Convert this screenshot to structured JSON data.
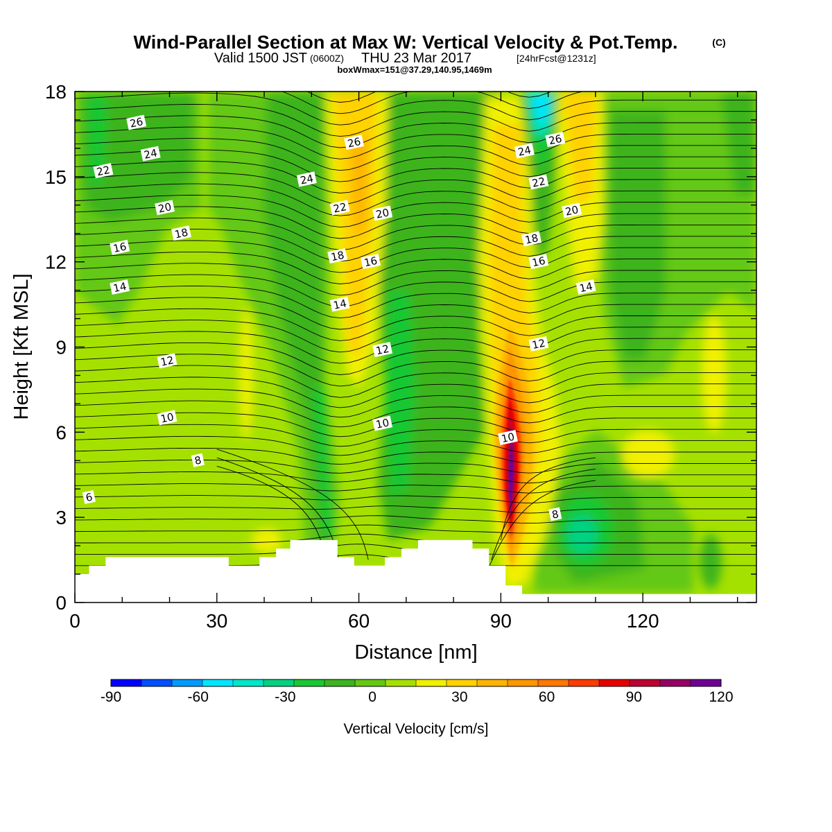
{
  "title": {
    "main": "Wind-Parallel Section at Max W: Vertical Velocity & Pot.Temp.",
    "main_mark": "(C)",
    "valid_a": "Valid 1500 JST",
    "valid_z": "(0600Z)",
    "valid_b": "THU 23 Mar 2017",
    "valid_fcst": "[24hrFcst@1231z]",
    "box": "boxWmax=151@37.29,140.95,1469m"
  },
  "chart_data": {
    "type": "heatmap",
    "xlabel": "Distance [nm]",
    "ylabel": "Height [Kft MSL]",
    "xlim": [
      0,
      144
    ],
    "ylim": [
      0,
      18
    ],
    "x_ticks": [
      0,
      30,
      60,
      90,
      120
    ],
    "y_ticks": [
      0,
      3,
      6,
      9,
      12,
      15,
      18
    ],
    "colorbar": {
      "title": "Vertical Velocity [cm/s]",
      "min": -90,
      "max": 120,
      "step": 10,
      "tick_labels": [
        -90,
        -60,
        -30,
        0,
        30,
        60,
        90,
        120
      ],
      "colors": [
        "#0000ff",
        "#0050ff",
        "#009bff",
        "#00e6ff",
        "#00e6c8",
        "#00d282",
        "#19c832",
        "#3cb41e",
        "#64c814",
        "#a5e100",
        "#f0f000",
        "#ffd200",
        "#ffb400",
        "#ff9600",
        "#ff7800",
        "#ff3c00",
        "#e60000",
        "#be0032",
        "#960064",
        "#6e0096"
      ]
    },
    "w_updrafts": [
      {
        "x": 91,
        "y": 4.8,
        "value": 151
      },
      {
        "x": 58,
        "y": 12.5,
        "value": 35
      },
      {
        "x": 106,
        "y": 16.0,
        "value": 30
      },
      {
        "x": 126,
        "y": 5.5,
        "value": 15
      }
    ],
    "w_downdrafts": [
      {
        "x": 96,
        "y": 16.5,
        "value": -55
      },
      {
        "x": 107,
        "y": 2.6,
        "value": -35
      },
      {
        "x": 5,
        "y": 15.5,
        "value": -35
      },
      {
        "x": 65,
        "y": 9.0,
        "value": -25
      },
      {
        "x": 53,
        "y": 4.0,
        "value": -25
      }
    ],
    "theta_contour_labels": [
      {
        "text": "26",
        "x": 13,
        "y": 16.9
      },
      {
        "text": "24",
        "x": 16,
        "y": 15.8
      },
      {
        "text": "22",
        "x": 6,
        "y": 15.2
      },
      {
        "text": "20",
        "x": 19,
        "y": 13.9
      },
      {
        "text": "18",
        "x": 22.5,
        "y": 13.0
      },
      {
        "text": "16",
        "x": 9.5,
        "y": 12.5
      },
      {
        "text": "14",
        "x": 9.5,
        "y": 11.1
      },
      {
        "text": "12",
        "x": 19.5,
        "y": 8.5
      },
      {
        "text": "10",
        "x": 19.5,
        "y": 6.5
      },
      {
        "text": "8",
        "x": 26,
        "y": 5.0
      },
      {
        "text": "6",
        "x": 3,
        "y": 3.7
      },
      {
        "text": "24",
        "x": 49,
        "y": 14.9
      },
      {
        "text": "26",
        "x": 59,
        "y": 16.2
      },
      {
        "text": "22",
        "x": 56,
        "y": 13.9
      },
      {
        "text": "20",
        "x": 65,
        "y": 13.7
      },
      {
        "text": "18",
        "x": 55.5,
        "y": 12.2
      },
      {
        "text": "16",
        "x": 62.5,
        "y": 12.0
      },
      {
        "text": "14",
        "x": 56,
        "y": 10.5
      },
      {
        "text": "12",
        "x": 65,
        "y": 8.9
      },
      {
        "text": "10",
        "x": 65,
        "y": 6.3
      },
      {
        "text": "24",
        "x": 95,
        "y": 15.9
      },
      {
        "text": "26",
        "x": 101.5,
        "y": 16.3
      },
      {
        "text": "22",
        "x": 98,
        "y": 14.8
      },
      {
        "text": "20",
        "x": 105,
        "y": 13.8
      },
      {
        "text": "18",
        "x": 96.5,
        "y": 12.8
      },
      {
        "text": "16",
        "x": 98,
        "y": 12.0
      },
      {
        "text": "14",
        "x": 108,
        "y": 11.1
      },
      {
        "text": "12",
        "x": 98,
        "y": 9.1
      },
      {
        "text": "10",
        "x": 91.5,
        "y": 5.8
      },
      {
        "text": "8",
        "x": 101.5,
        "y": 3.1
      }
    ],
    "terrain": [
      [
        0,
        1.0
      ],
      [
        3,
        1.0
      ],
      [
        3,
        1.3
      ],
      [
        6.5,
        1.3
      ],
      [
        6.5,
        1.6
      ],
      [
        32.5,
        1.6
      ],
      [
        32.5,
        1.3
      ],
      [
        39,
        1.3
      ],
      [
        39,
        1.6
      ],
      [
        42.5,
        1.6
      ],
      [
        42.5,
        1.9
      ],
      [
        45.5,
        1.9
      ],
      [
        45.5,
        2.2
      ],
      [
        55.5,
        2.2
      ],
      [
        55.5,
        1.6
      ],
      [
        59,
        1.6
      ],
      [
        59,
        1.3
      ],
      [
        65.5,
        1.3
      ],
      [
        65.5,
        1.6
      ],
      [
        69,
        1.6
      ],
      [
        69,
        1.9
      ],
      [
        72.5,
        1.9
      ],
      [
        72.5,
        2.2
      ],
      [
        84,
        2.2
      ],
      [
        84,
        1.9
      ],
      [
        87.5,
        1.9
      ],
      [
        87.5,
        1.3
      ],
      [
        91,
        1.3
      ],
      [
        91,
        0.6
      ],
      [
        94.5,
        0.6
      ],
      [
        94.5,
        0.3
      ],
      [
        144,
        0.3
      ]
    ]
  }
}
